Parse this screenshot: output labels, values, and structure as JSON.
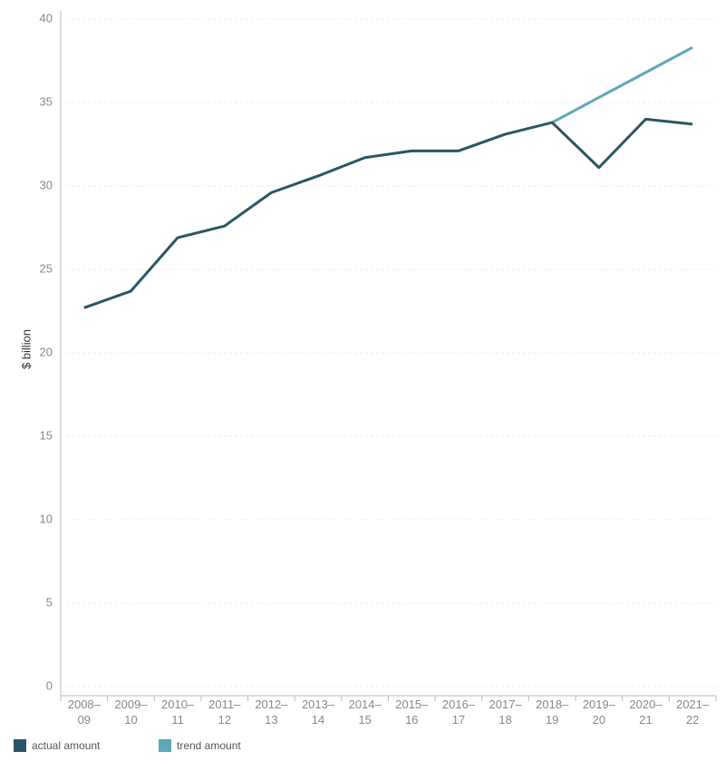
{
  "chart_data": {
    "type": "line",
    "y_label": "$ billion",
    "categories": [
      "2008–09",
      "2009–10",
      "2010–11",
      "2011–12",
      "2012–13",
      "2013–14",
      "2014–15",
      "2015–16",
      "2016–17",
      "2017–18",
      "2018–19",
      "2019–20",
      "2020–21",
      "2021–22"
    ],
    "series": [
      {
        "name": "actual amount",
        "color": "#2a5566",
        "values": [
          22.7,
          23.7,
          26.9,
          27.6,
          29.6,
          30.6,
          31.7,
          32.1,
          32.1,
          33.1,
          33.8,
          31.1,
          34.0,
          33.7
        ]
      },
      {
        "name": "trend amount",
        "color": "#5ea8ba",
        "values": [
          null,
          null,
          null,
          null,
          null,
          null,
          null,
          null,
          null,
          null,
          33.8,
          35.3,
          36.8,
          38.3
        ]
      }
    ],
    "ylim": [
      0,
      40
    ],
    "yticks": [
      0,
      5,
      10,
      15,
      20,
      25,
      30,
      35,
      40
    ],
    "grid": true
  }
}
